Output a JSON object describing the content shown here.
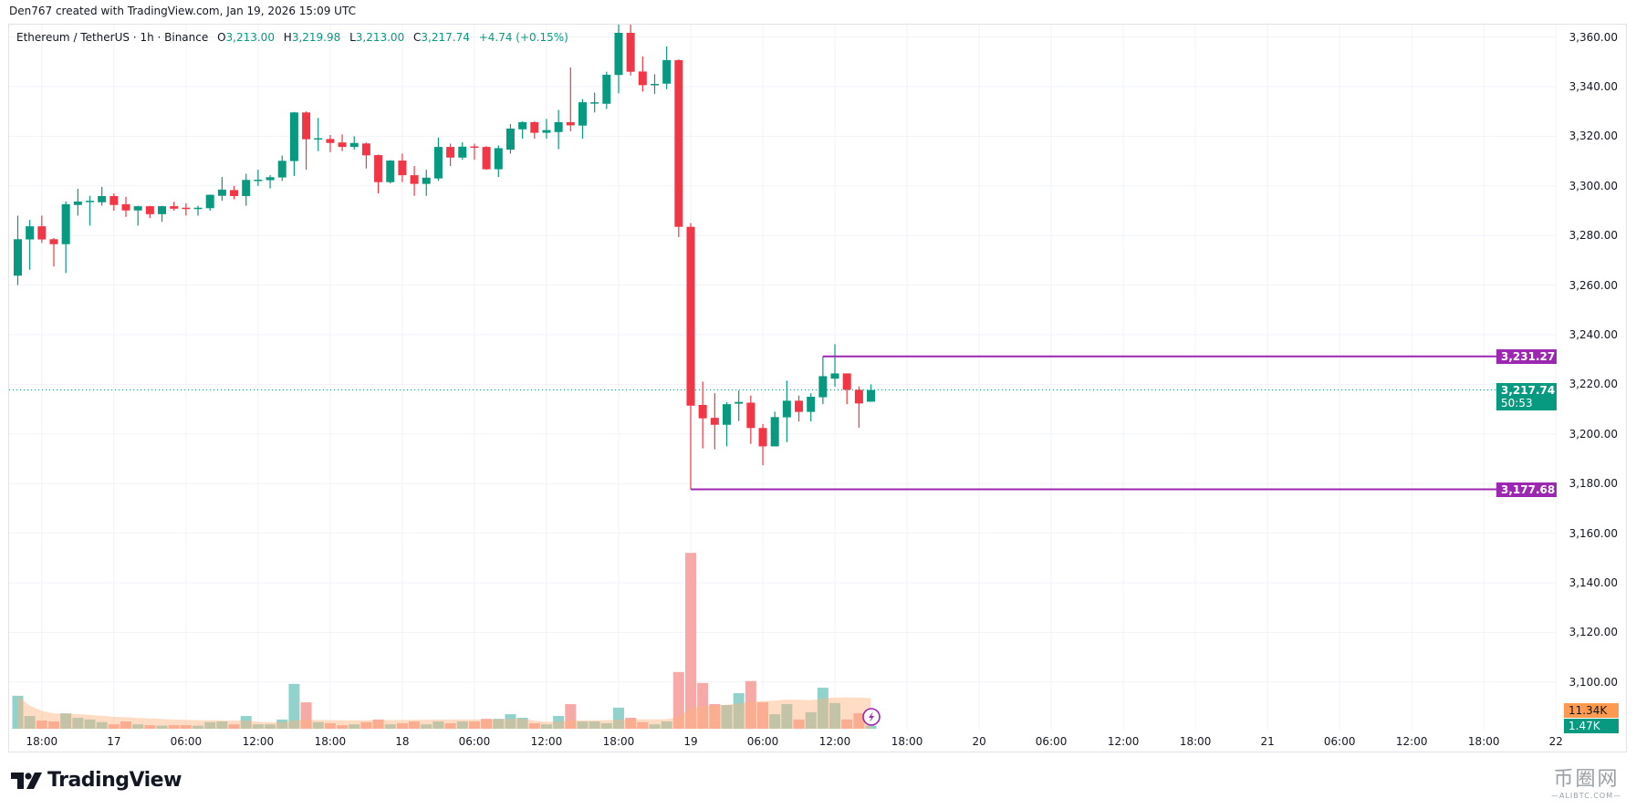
{
  "header": {
    "title": "Den767 created with TradingView.com, Jan 19, 2026 15:09 UTC"
  },
  "legend": {
    "symbol": "Ethereum / TetherUS · 1h · Binance",
    "open_label": "O",
    "open": "3,213.00",
    "high_label": "H",
    "high": "3,219.98",
    "low_label": "L",
    "low": "3,213.00",
    "close_label": "C",
    "close": "3,217.74",
    "change": "+4.74 (+0.15%)"
  },
  "colors": {
    "up": "#089981",
    "down": "#f23645",
    "vol_up": "#92d2cc",
    "vol_down": "#f7a9a7",
    "vol_ma": "#ffb27a",
    "level": "#9c27b0",
    "grid": "#f0f3fa"
  },
  "price_axis": [
    "3,360.00",
    "3,340.00",
    "3,320.00",
    "3,300.00",
    "3,280.00",
    "3,260.00",
    "3,240.00",
    "3,220.00",
    "3,200.00",
    "3,180.00",
    "3,160.00",
    "3,140.00",
    "3,120.00",
    "3,100.00"
  ],
  "badges": {
    "resistance": "3,231.27",
    "current_price": "3,217.74",
    "countdown": "50:53",
    "support": "3,177.68",
    "volume_ma": "11.34K",
    "volume": "1.47K"
  },
  "time_axis": [
    {
      "h": -54,
      "label": "18:00"
    },
    {
      "h": -48,
      "label": "17"
    },
    {
      "h": -42,
      "label": "06:00"
    },
    {
      "h": -36,
      "label": "12:00"
    },
    {
      "h": -30,
      "label": "18:00"
    },
    {
      "h": -24,
      "label": "18"
    },
    {
      "h": -18,
      "label": "06:00"
    },
    {
      "h": -12,
      "label": "12:00"
    },
    {
      "h": -6,
      "label": "18:00"
    },
    {
      "h": 0,
      "label": "19"
    },
    {
      "h": 6,
      "label": "06:00"
    },
    {
      "h": 12,
      "label": "12:00"
    },
    {
      "h": 18,
      "label": "18:00"
    },
    {
      "h": 24,
      "label": "20"
    },
    {
      "h": 30,
      "label": "06:00"
    },
    {
      "h": 36,
      "label": "12:00"
    },
    {
      "h": 42,
      "label": "18:00"
    },
    {
      "h": 48,
      "label": "21"
    },
    {
      "h": 54,
      "label": "06:00"
    },
    {
      "h": 60,
      "label": "12:00"
    },
    {
      "h": 66,
      "label": "18:00"
    },
    {
      "h": 72,
      "label": "22"
    }
  ],
  "chart_data": {
    "type": "candlestick",
    "interval": "1h",
    "first_bar_hour_offset_from_jan19": -56,
    "ylim": [
      3090,
      3365
    ],
    "levels": [
      {
        "price": 3231.27,
        "from_bar": 67
      },
      {
        "price": 3177.68,
        "from_bar": 56
      }
    ],
    "current_price": 3217.74,
    "ohlc": [
      [
        3263.8,
        3288,
        3260,
        3278.5
      ],
      [
        3278.4,
        3286.3,
        3266.2,
        3283.7
      ],
      [
        3283.7,
        3288,
        3277,
        3278.4
      ],
      [
        3278.5,
        3279,
        3267.5,
        3276.5
      ],
      [
        3276.5,
        3293.7,
        3264.9,
        3292.6
      ],
      [
        3292.3,
        3298.8,
        3288,
        3293.7
      ],
      [
        3293.5,
        3296,
        3284,
        3294
      ],
      [
        3293.4,
        3299.6,
        3292,
        3295.9
      ],
      [
        3295.9,
        3297,
        3290,
        3292.3
      ],
      [
        3292.6,
        3295.6,
        3287.5,
        3290.1
      ],
      [
        3290.1,
        3292,
        3284,
        3291.8
      ],
      [
        3291.8,
        3292,
        3287,
        3288.6
      ],
      [
        3288.6,
        3292,
        3285.5,
        3291.8
      ],
      [
        3291.8,
        3293.6,
        3290,
        3290.8
      ],
      [
        3291.2,
        3293,
        3288,
        3290.8
      ],
      [
        3290.8,
        3292,
        3288,
        3291.2
      ],
      [
        3291,
        3296.5,
        3290,
        3296.4
      ],
      [
        3296,
        3303.6,
        3294,
        3298.5
      ],
      [
        3298.3,
        3300,
        3294.6,
        3295.9
      ],
      [
        3295.9,
        3304.9,
        3292,
        3302.4
      ],
      [
        3302.2,
        3306.5,
        3300,
        3302.5
      ],
      [
        3302.3,
        3304.3,
        3299,
        3303.5
      ],
      [
        3303.4,
        3312.2,
        3302,
        3310.1
      ],
      [
        3310,
        3329.8,
        3304,
        3329.6
      ],
      [
        3329.6,
        3330,
        3306.5,
        3318.8
      ],
      [
        3318.8,
        3327.4,
        3314,
        3319.2
      ],
      [
        3318.9,
        3320.5,
        3313.6,
        3317.3
      ],
      [
        3317.5,
        3320.8,
        3314,
        3315.7
      ],
      [
        3315.7,
        3320,
        3314.6,
        3317.3
      ],
      [
        3317.1,
        3317.5,
        3307,
        3312.3
      ],
      [
        3312.4,
        3312.6,
        3297,
        3301.5
      ],
      [
        3301.5,
        3310.4,
        3301,
        3310.2
      ],
      [
        3310.2,
        3313,
        3301.5,
        3304.3
      ],
      [
        3304.3,
        3308,
        3296,
        3300.8
      ],
      [
        3300.8,
        3306.5,
        3296,
        3303.3
      ],
      [
        3303,
        3319.5,
        3302,
        3315.7
      ],
      [
        3315.7,
        3317,
        3308,
        3311.4
      ],
      [
        3311.4,
        3317.6,
        3310.5,
        3315.8
      ],
      [
        3315.9,
        3317,
        3310.5,
        3315.5
      ],
      [
        3315.7,
        3316,
        3306.5,
        3306.7
      ],
      [
        3306.7,
        3316.3,
        3303.6,
        3315.2
      ],
      [
        3314.6,
        3324.9,
        3313,
        3323.1
      ],
      [
        3322.8,
        3326,
        3319,
        3325.7
      ],
      [
        3325.7,
        3326,
        3319,
        3321.4
      ],
      [
        3321.4,
        3327,
        3319,
        3322.5
      ],
      [
        3321.7,
        3330.6,
        3314.8,
        3325.7
      ],
      [
        3325.7,
        3347.7,
        3322,
        3324.4
      ],
      [
        3324.3,
        3335,
        3319,
        3333.7
      ],
      [
        3333.5,
        3337.6,
        3329.6,
        3333.7
      ],
      [
        3333.1,
        3346,
        3331,
        3344.8
      ],
      [
        3344.7,
        3365,
        3337.3,
        3361.7
      ],
      [
        3361.7,
        3365,
        3344.5,
        3346
      ],
      [
        3346.1,
        3352.2,
        3338,
        3340.6
      ],
      [
        3340.8,
        3345,
        3337,
        3341.1
      ],
      [
        3341.2,
        3356.2,
        3339,
        3350.7
      ],
      [
        3350.7,
        3351,
        3279.4,
        3283.5
      ],
      [
        3283.5,
        3285,
        3177.68,
        3211.4
      ],
      [
        3211.7,
        3221.1,
        3194.2,
        3206.3
      ],
      [
        3206.5,
        3216.4,
        3193.8,
        3203.7
      ],
      [
        3203.7,
        3212.8,
        3195,
        3212
      ],
      [
        3212.2,
        3217.5,
        3205.2,
        3212.9
      ],
      [
        3212.6,
        3215.5,
        3196,
        3202.4
      ],
      [
        3202.4,
        3204,
        3187.4,
        3195
      ],
      [
        3195,
        3209,
        3195,
        3206.8
      ],
      [
        3206.7,
        3221.5,
        3196.7,
        3213.4
      ],
      [
        3213.4,
        3215.5,
        3205,
        3208.9
      ],
      [
        3208.9,
        3216.4,
        3205,
        3215
      ],
      [
        3214.8,
        3231.27,
        3212,
        3223.3
      ],
      [
        3222.3,
        3236.2,
        3219,
        3224.4
      ],
      [
        3224.4,
        3224.4,
        3212,
        3217.8
      ],
      [
        3217.8,
        3219.2,
        3202.5,
        3212.3
      ],
      [
        3213,
        3219.98,
        3213,
        3217.74
      ]
    ],
    "volume_k": [
      15,
      5.8,
      3.7,
      3.3,
      7,
      5,
      4.2,
      3,
      2,
      3.3,
      2,
      1.6,
      1.4,
      1.6,
      1.6,
      1.4,
      3,
      3.3,
      2,
      5.8,
      2,
      2,
      4.2,
      20.4,
      12,
      3,
      2.5,
      1.6,
      2,
      3,
      4.2,
      2,
      2.5,
      3.3,
      2,
      3.3,
      2.5,
      3.3,
      3.3,
      4.5,
      4.5,
      6.6,
      5,
      2.5,
      2,
      5.8,
      11.2,
      3.3,
      3.3,
      2.5,
      9.6,
      5,
      3,
      2,
      3.3,
      25.8,
      80,
      20.8,
      11.2,
      10.8,
      16.2,
      21.7,
      12,
      6.6,
      11.2,
      4.2,
      7.5,
      18.7,
      11.7,
      4.2,
      7,
      1.47
    ]
  },
  "logo": {
    "text": "TradingView"
  },
  "watermark": {
    "cn": "币圈网",
    "en": "—ALIBTC.COM—"
  }
}
